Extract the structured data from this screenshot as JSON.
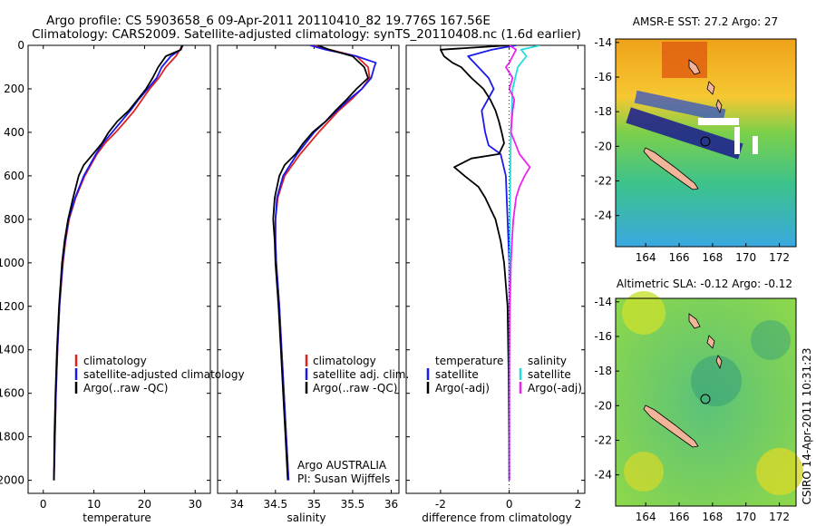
{
  "title": {
    "line1": "Argo profile: CS 5903658_6 09-Apr-2011 20110410_82 19.776S 167.56E",
    "line2": "Climatology: CARS2009. Satellite-adjusted climatology: synTS_20110408.nc (1.6d earlier)"
  },
  "colors": {
    "clim": "#dd2222",
    "sat": "#1a1aee",
    "argo": "#000000",
    "sat_sal": "#22dddd",
    "argo_sal": "#ee22ee"
  },
  "depth_axis": {
    "ticks": [
      0,
      200,
      400,
      600,
      800,
      1000,
      1200,
      1400,
      1600,
      1800,
      2000
    ],
    "range": [
      0,
      2060
    ]
  },
  "panels": {
    "temperature": {
      "xlabel": "temperature",
      "xticks": [
        0,
        10,
        20,
        30
      ],
      "xlim": [
        -3,
        33
      ],
      "legend": [
        "climatology",
        "satellite-adjusted climatology",
        "Argo(..raw -QC)"
      ]
    },
    "salinity": {
      "xlabel": "salinity",
      "xticks": [
        "34",
        "34.5",
        "35",
        "35.5",
        "36"
      ],
      "xlim": [
        33.75,
        36.1
      ],
      "legend": [
        "climatology",
        "satellite adj. clim.",
        "Argo(..raw -QC)"
      ],
      "credit1": "Argo AUSTRALIA",
      "credit2": "PI: Susan Wijffels"
    },
    "difference": {
      "xlabel": "difference from climatology",
      "xticks": [
        "-2",
        "0",
        "2"
      ],
      "xlim": [
        -3.0,
        2.2
      ],
      "legend_temp_head": "temperature",
      "legend_temp": [
        "satellite",
        "Argo(-adj)"
      ],
      "legend_sal_head": "salinity",
      "legend_sal": [
        "satellite",
        "Argo(-adj)"
      ]
    }
  },
  "chart_data": [
    {
      "type": "line",
      "title": "",
      "xlabel": "temperature",
      "ylabel": "",
      "xlim": [
        -3,
        33
      ],
      "ylim": [
        0,
        2060
      ],
      "series": [
        {
          "name": "climatology",
          "depth": [
            0,
            20,
            50,
            100,
            150,
            200,
            250,
            300,
            350,
            400,
            450,
            500,
            600,
            700,
            800,
            900,
            1000,
            1200,
            1400,
            1600,
            1800,
            2000
          ],
          "values": [
            27.4,
            27.0,
            26.2,
            24.2,
            22.8,
            21.0,
            19.5,
            18.0,
            16.2,
            14.3,
            12.2,
            10.6,
            8.2,
            6.4,
            5.1,
            4.4,
            3.9,
            3.2,
            2.8,
            2.5,
            2.3,
            2.1
          ]
        },
        {
          "name": "satellite-adjusted climatology",
          "depth": [
            0,
            20,
            50,
            100,
            150,
            200,
            250,
            300,
            350,
            400,
            450,
            500,
            600,
            700,
            800,
            900,
            1000,
            1200,
            1400,
            1600,
            1800,
            2000
          ],
          "values": [
            27.6,
            27.1,
            25.2,
            23.4,
            22.4,
            20.6,
            18.8,
            17.2,
            15.4,
            13.6,
            11.8,
            10.4,
            8.0,
            6.3,
            5.0,
            4.3,
            3.8,
            3.2,
            2.8,
            2.5,
            2.3,
            2.1
          ]
        },
        {
          "name": "Argo(..raw -QC)",
          "depth": [
            0,
            20,
            50,
            100,
            150,
            200,
            250,
            300,
            350,
            400,
            450,
            500,
            550,
            600,
            700,
            800,
            900,
            1000,
            1200,
            1400,
            1600,
            1800,
            2000
          ],
          "values": [
            27.4,
            27.2,
            24.2,
            22.7,
            21.6,
            20.3,
            18.6,
            16.9,
            14.6,
            12.9,
            11.6,
            9.8,
            8.0,
            7.0,
            5.9,
            4.9,
            4.2,
            3.7,
            3.1,
            2.7,
            2.4,
            2.2,
            2.1
          ]
        }
      ]
    },
    {
      "type": "line",
      "title": "",
      "xlabel": "salinity",
      "ylabel": "",
      "xlim": [
        33.75,
        36.1
      ],
      "ylim": [
        0,
        2060
      ],
      "series": [
        {
          "name": "climatology",
          "depth": [
            0,
            20,
            50,
            100,
            150,
            200,
            250,
            300,
            400,
            500,
            600,
            700,
            800,
            900,
            1000,
            1200,
            1400,
            1600,
            1800,
            2000
          ],
          "values": [
            35.0,
            35.2,
            35.55,
            35.7,
            35.72,
            35.62,
            35.48,
            35.32,
            35.06,
            34.82,
            34.62,
            34.53,
            34.5,
            34.5,
            34.51,
            34.55,
            34.58,
            34.61,
            34.64,
            34.67
          ]
        },
        {
          "name": "satellite adj. clim.",
          "depth": [
            0,
            20,
            50,
            80,
            100,
            150,
            200,
            250,
            300,
            400,
            500,
            600,
            700,
            800,
            900,
            1000,
            1200,
            1400,
            1600,
            1800,
            2000
          ],
          "values": [
            34.95,
            35.15,
            35.55,
            35.8,
            35.78,
            35.74,
            35.62,
            35.45,
            35.3,
            35.0,
            34.78,
            34.6,
            34.52,
            34.5,
            34.5,
            34.51,
            34.55,
            34.58,
            34.61,
            34.64,
            34.67
          ]
        },
        {
          "name": "Argo(..raw -QC)",
          "depth": [
            0,
            20,
            50,
            100,
            150,
            200,
            250,
            300,
            350,
            400,
            450,
            500,
            550,
            600,
            700,
            800,
            900,
            1000,
            1200,
            1400,
            1600,
            1800,
            2000
          ],
          "values": [
            35.05,
            35.2,
            35.5,
            35.65,
            35.7,
            35.55,
            35.42,
            35.28,
            35.15,
            34.98,
            34.86,
            34.76,
            34.62,
            34.55,
            34.49,
            34.47,
            34.49,
            34.5,
            34.54,
            34.57,
            34.6,
            34.63,
            34.66
          ]
        }
      ],
      "annotations": [
        "Argo AUSTRALIA",
        "PI: Susan Wijffels"
      ]
    },
    {
      "type": "line",
      "title": "",
      "xlabel": "difference from climatology",
      "ylabel": "",
      "xlim": [
        -3.0,
        2.2
      ],
      "ylim": [
        0,
        2060
      ],
      "series": [
        {
          "name": "temperature satellite",
          "depth": [
            0,
            20,
            50,
            100,
            150,
            200,
            300,
            400,
            460,
            500,
            600,
            800,
            1000,
            1500,
            2000
          ],
          "values": [
            0.2,
            -0.5,
            -1.2,
            -0.9,
            -0.6,
            -0.45,
            -0.8,
            -0.7,
            -0.6,
            -0.25,
            -0.1,
            -0.05,
            0.0,
            0.0,
            0.0
          ]
        },
        {
          "name": "temperature Argo(-adj)",
          "depth": [
            0,
            20,
            50,
            80,
            100,
            150,
            200,
            250,
            300,
            350,
            400,
            450,
            500,
            520,
            560,
            600,
            650,
            700,
            750,
            800,
            900,
            1000,
            1100,
            1200,
            1500,
            2000
          ],
          "values": [
            0.0,
            -2.0,
            -1.9,
            -1.65,
            -1.4,
            -1.1,
            -0.75,
            -0.55,
            -0.4,
            -0.3,
            -0.22,
            -0.15,
            -0.3,
            -1.1,
            -1.6,
            -1.3,
            -0.9,
            -0.7,
            -0.55,
            -0.4,
            -0.25,
            -0.15,
            -0.1,
            -0.05,
            -0.02,
            0.0
          ]
        },
        {
          "name": "salinity satellite",
          "depth": [
            0,
            20,
            50,
            100,
            200,
            400,
            600,
            800,
            1000,
            1500,
            2000
          ],
          "values": [
            0.9,
            0.35,
            0.5,
            0.25,
            0.1,
            0.05,
            0.03,
            0.02,
            0.01,
            0.0,
            0.0
          ]
        },
        {
          "name": "salinity Argo(-adj)",
          "depth": [
            0,
            20,
            50,
            80,
            100,
            150,
            200,
            250,
            300,
            400,
            500,
            560,
            600,
            650,
            700,
            800,
            900,
            1000,
            1200,
            1500,
            2000
          ],
          "values": [
            0.0,
            0.2,
            0.1,
            0.0,
            -0.1,
            0.1,
            0.0,
            0.15,
            0.1,
            0.05,
            0.3,
            0.6,
            0.45,
            0.3,
            0.2,
            0.12,
            0.08,
            0.05,
            0.02,
            0.0,
            0.0
          ]
        }
      ]
    }
  ],
  "maps": {
    "sst": {
      "title": "AMSR-E SST: 27.2 Argo: 27",
      "yticks": [
        "-14",
        "-16",
        "-18",
        "-20",
        "-22",
        "-24"
      ],
      "xticks": [
        "164",
        "166",
        "168",
        "170",
        "172"
      ]
    },
    "sla": {
      "title": "Altimetric SLA: -0.12 Argo: -0.12",
      "yticks": [
        "-14",
        "-16",
        "-18",
        "-20",
        "-22",
        "-24"
      ],
      "xticks": [
        "164",
        "166",
        "168",
        "170",
        "172"
      ]
    }
  },
  "stamp": "CSIRO 14-Apr-2011 10:31:23"
}
